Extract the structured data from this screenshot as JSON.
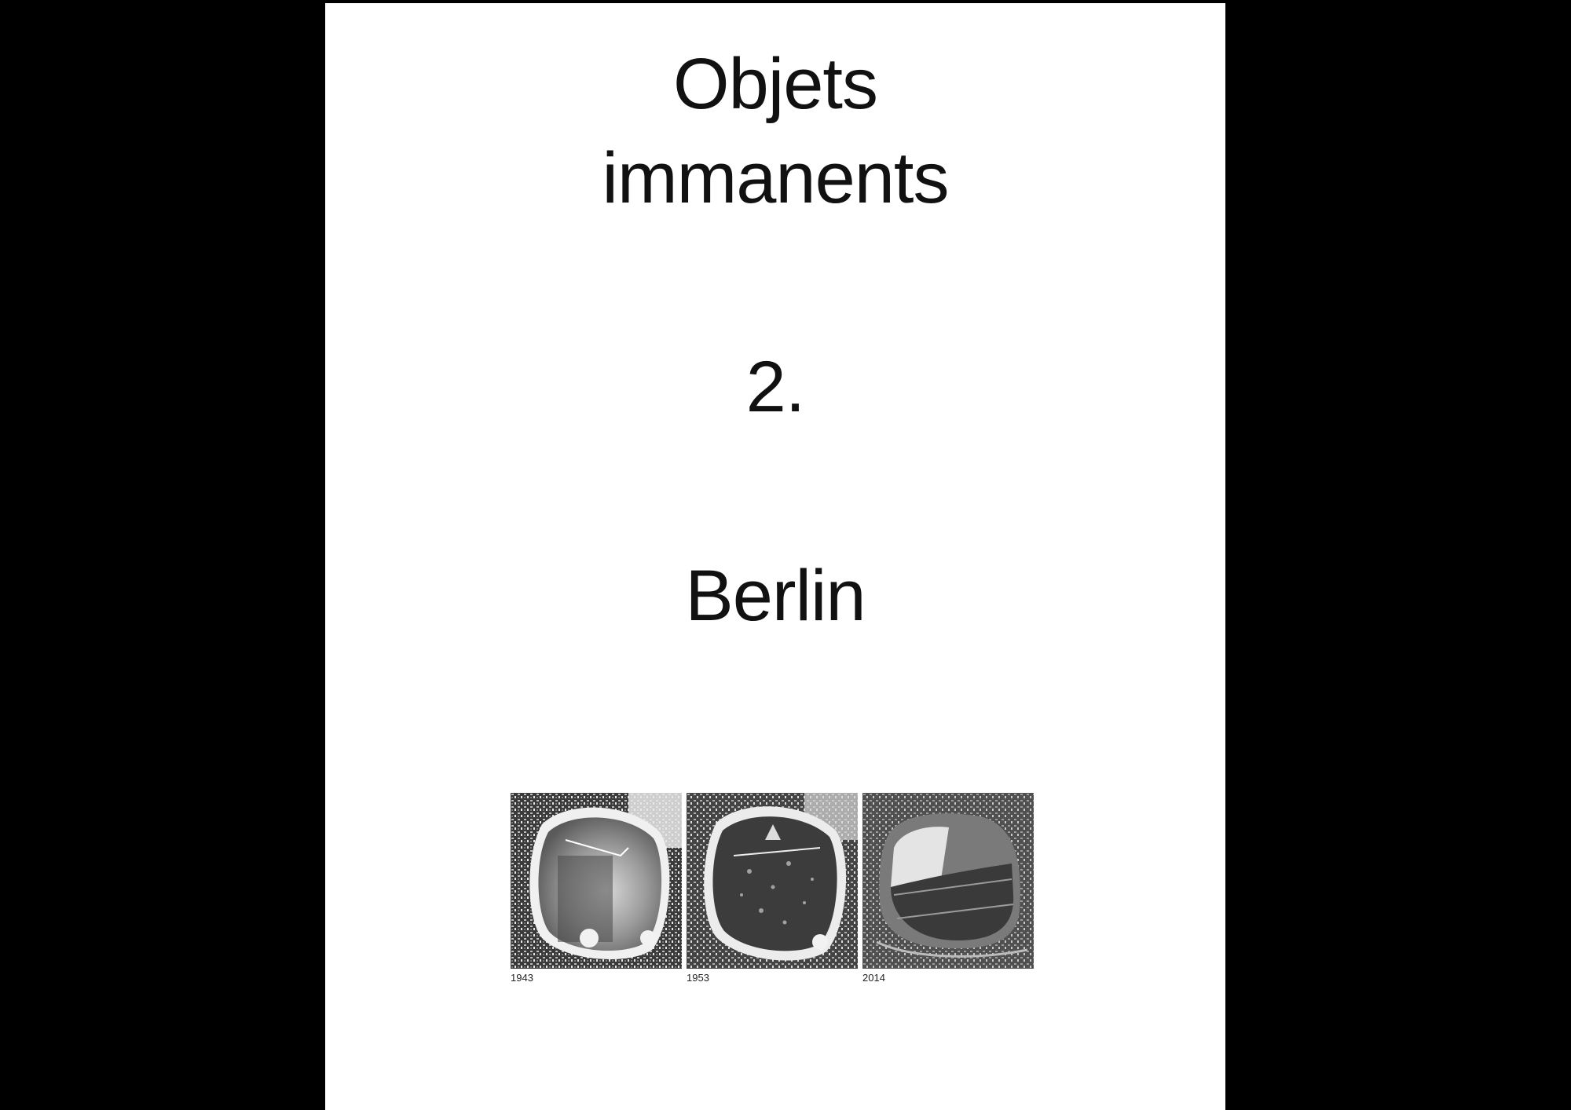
{
  "cover": {
    "title_line1": "Objets",
    "title_line2": "immanents",
    "number": "2.",
    "city": "Berlin"
  },
  "photos": [
    {
      "year": "1943",
      "icon": "aerial-photo-icon"
    },
    {
      "year": "1953",
      "icon": "aerial-photo-icon"
    },
    {
      "year": "2014",
      "icon": "aerial-photo-icon"
    }
  ]
}
